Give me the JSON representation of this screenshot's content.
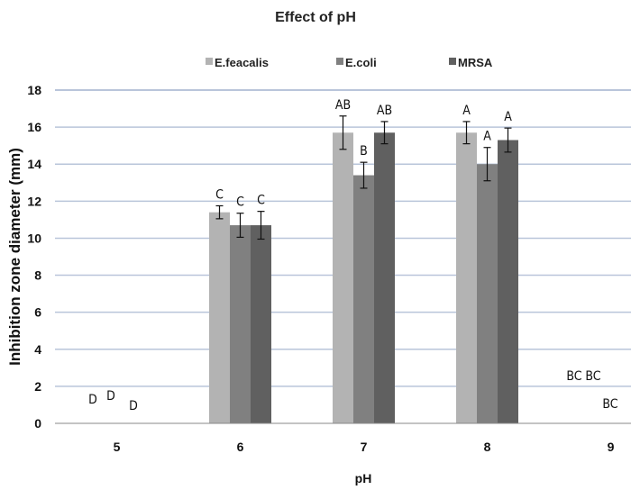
{
  "chart_data": {
    "type": "bar",
    "title": "Effect of pH",
    "xlabel": "pH",
    "ylabel": "Inhibition  zone diameter (mm)",
    "categories": [
      "5",
      "6",
      "7",
      "8",
      "9"
    ],
    "ylim": [
      0,
      18
    ],
    "yticks": [
      "0",
      "2",
      "4",
      "6",
      "8",
      "10",
      "12",
      "14",
      "16",
      "18"
    ],
    "grid": true,
    "legend_position": "top",
    "series": [
      {
        "name": "E.feacalis",
        "color": "#b3b3b3",
        "values": [
          0,
          11.4,
          15.7,
          15.7,
          0
        ],
        "errors": [
          0,
          0.35,
          0.9,
          0.6,
          0
        ],
        "letters": [
          "D",
          "C",
          "AB",
          "A",
          "BC"
        ]
      },
      {
        "name": "E.coli",
        "color": "#808080",
        "values": [
          0,
          10.7,
          13.4,
          14.0,
          0
        ],
        "errors": [
          0,
          0.65,
          0.7,
          0.9,
          0
        ],
        "letters": [
          "D",
          "C",
          "B",
          "A",
          "BC"
        ]
      },
      {
        "name": "MRSA",
        "color": "#606060",
        "values": [
          0,
          10.7,
          15.7,
          15.3,
          0
        ],
        "errors": [
          0,
          0.75,
          0.6,
          0.65,
          0
        ],
        "letters": [
          "D",
          "C",
          "AB",
          "A",
          "BC"
        ]
      }
    ],
    "gridline_color": "#b9c5da"
  }
}
